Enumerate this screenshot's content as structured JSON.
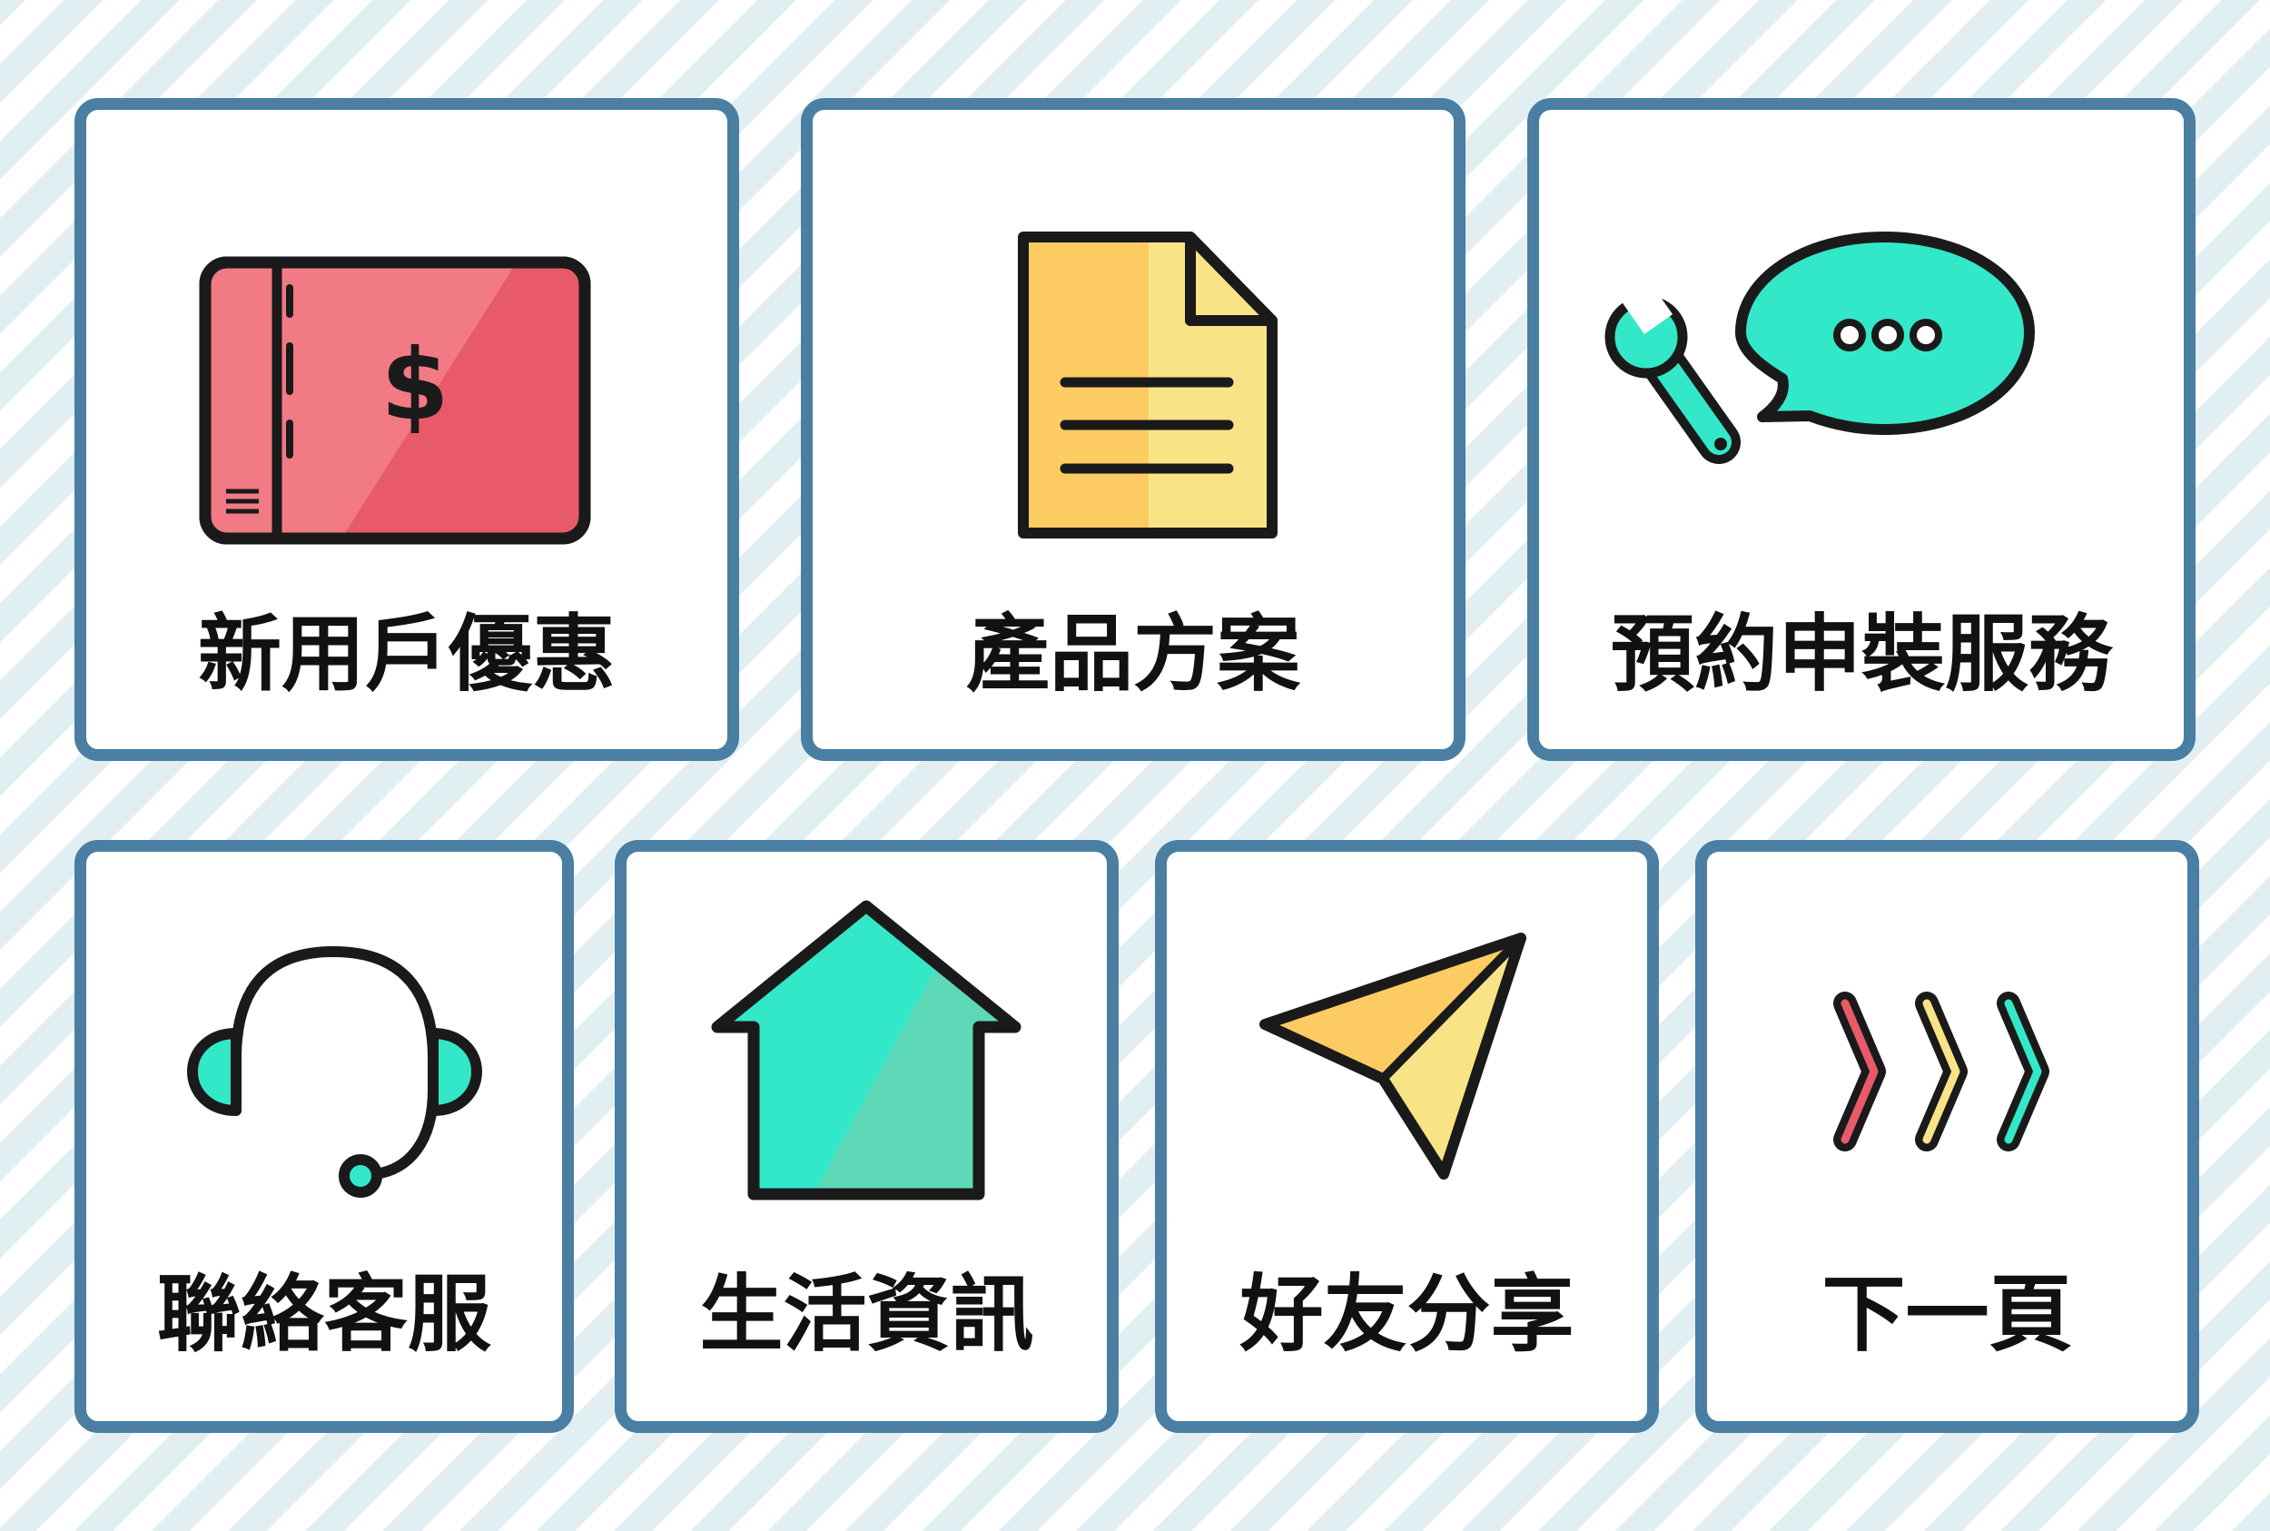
{
  "tiles": [
    {
      "label": "新用戶優惠",
      "icon": "coupon-ticket-icon"
    },
    {
      "label": "產品方案",
      "icon": "document-icon"
    },
    {
      "label": "預約申裝服務",
      "icon": "wrench-chat-icon"
    },
    {
      "label": "聯絡客服",
      "icon": "headset-icon"
    },
    {
      "label": "生活資訊",
      "icon": "house-icon"
    },
    {
      "label": "好友分享",
      "icon": "paper-plane-icon"
    },
    {
      "label": "下一頁",
      "icon": "next-chevrons-icon"
    }
  ],
  "colors": {
    "tile_border": "#4a7ea3",
    "stripe": "#e1eff3",
    "coupon_red": "#e85a68",
    "document_yellow": "#fccc63",
    "teal": "#32e8c8",
    "outline": "#1a1a1a"
  }
}
